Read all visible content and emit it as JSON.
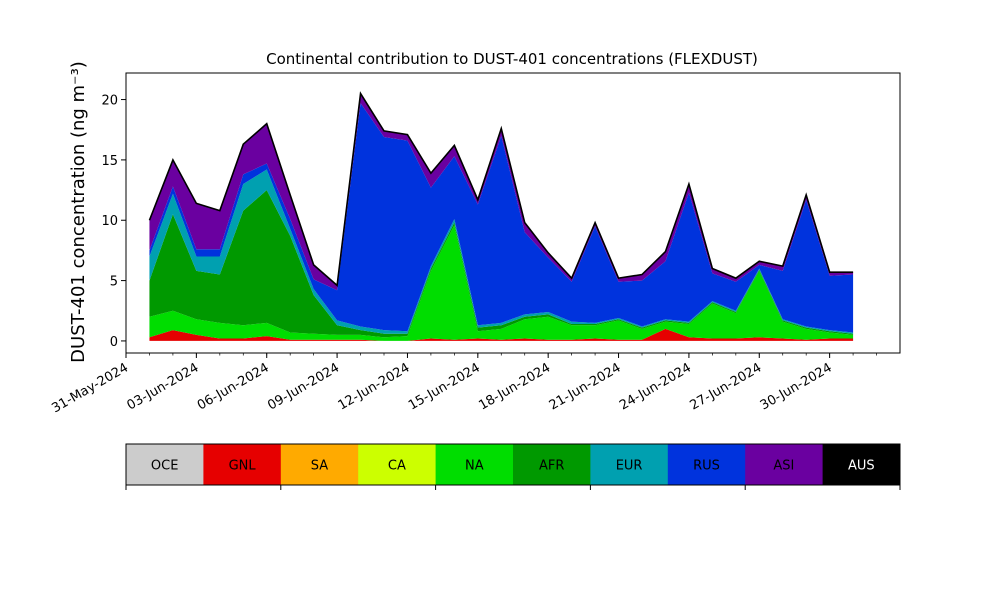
{
  "chart_data": {
    "type": "area",
    "title": "Continental contribution to DUST-401 concentrations (FLEXDUST)",
    "ylabel": "DUST-401 concentration (ng m⁻³)",
    "xlabel": "",
    "x_start": "2024-06-01",
    "x_end": "2024-07-01",
    "xlim": [
      "2024-05-31",
      "2024-07-03"
    ],
    "ylim": [
      -1,
      22.2
    ],
    "x_ticks": [
      "31-May-2024",
      "03-Jun-2024",
      "06-Jun-2024",
      "09-Jun-2024",
      "12-Jun-2024",
      "15-Jun-2024",
      "18-Jun-2024",
      "21-Jun-2024",
      "24-Jun-2024",
      "27-Jun-2024",
      "30-Jun-2024"
    ],
    "y_ticks": [
      0,
      5,
      10,
      15,
      20
    ],
    "grid": false,
    "total_line_color": "#000000",
    "x_dates": [
      "2024-06-01",
      "2024-06-02",
      "2024-06-03",
      "2024-06-04",
      "2024-06-05",
      "2024-06-06",
      "2024-06-07",
      "2024-06-08",
      "2024-06-09",
      "2024-06-10",
      "2024-06-11",
      "2024-06-12",
      "2024-06-13",
      "2024-06-14",
      "2024-06-15",
      "2024-06-16",
      "2024-06-17",
      "2024-06-18",
      "2024-06-19",
      "2024-06-20",
      "2024-06-21",
      "2024-06-22",
      "2024-06-23",
      "2024-06-24",
      "2024-06-25",
      "2024-06-26",
      "2024-06-27",
      "2024-06-28",
      "2024-06-29",
      "2024-06-30",
      "2024-07-01"
    ],
    "series": [
      {
        "name": "OCE",
        "color": "#cccccc",
        "values": [
          0,
          0,
          0,
          0,
          0,
          0,
          0,
          0,
          0,
          0,
          0,
          0,
          0,
          0,
          0,
          0,
          0,
          0,
          0,
          0,
          0,
          0,
          0,
          0,
          0,
          0,
          0,
          0,
          0,
          0,
          0
        ]
      },
      {
        "name": "GNL",
        "color": "#e60000",
        "values": [
          0.3,
          0.9,
          0.5,
          0.2,
          0.2,
          0.4,
          0.1,
          0.1,
          0.1,
          0.1,
          0,
          0,
          0.2,
          0.1,
          0.2,
          0.1,
          0.2,
          0.1,
          0.1,
          0.2,
          0.1,
          0.1,
          1.0,
          0.3,
          0.2,
          0.2,
          0.3,
          0.2,
          0.1,
          0.2,
          0.2
        ]
      },
      {
        "name": "SA",
        "color": "#ffaa00",
        "values": [
          0,
          0,
          0,
          0,
          0,
          0,
          0,
          0,
          0,
          0,
          0,
          0,
          0,
          0,
          0,
          0,
          0,
          0,
          0,
          0,
          0,
          0,
          0,
          0,
          0,
          0,
          0,
          0,
          0,
          0,
          0
        ]
      },
      {
        "name": "CA",
        "color": "#ccff00",
        "values": [
          0,
          0,
          0,
          0,
          0,
          0,
          0,
          0,
          0,
          0,
          0,
          0,
          0,
          0,
          0,
          0,
          0,
          0,
          0,
          0,
          0,
          0,
          0,
          0,
          0,
          0,
          0,
          0,
          0,
          0,
          0
        ]
      },
      {
        "name": "NA",
        "color": "#00dd00",
        "values": [
          1.7,
          1.6,
          1.3,
          1.3,
          1.1,
          1.1,
          0.6,
          0.5,
          0.4,
          0.4,
          0.3,
          0.4,
          5.6,
          9.5,
          0.6,
          0.9,
          1.6,
          1.9,
          1.2,
          1.1,
          1.6,
          0.9,
          0.6,
          1.1,
          2.9,
          2.1,
          5.5,
          1.4,
          0.9,
          0.5,
          0.3
        ]
      },
      {
        "name": "AFR",
        "color": "#009900",
        "values": [
          3.0,
          8.0,
          4.0,
          4.0,
          9.5,
          11.0,
          8.0,
          3.2,
          0.8,
          0.4,
          0.3,
          0.2,
          0.2,
          0.2,
          0.3,
          0.3,
          0.2,
          0.2,
          0.1,
          0.1,
          0.1,
          0.1,
          0.1,
          0.1,
          0.1,
          0.1,
          0.1,
          0.1,
          0.1,
          0.1,
          0.1
        ]
      },
      {
        "name": "EUR",
        "color": "#00a0b0",
        "values": [
          2.0,
          1.7,
          1.2,
          1.5,
          2.2,
          1.7,
          0.6,
          0.5,
          0.4,
          0.3,
          0.3,
          0.2,
          0.2,
          0.3,
          0.2,
          0.2,
          0.2,
          0.2,
          0.2,
          0.1,
          0.1,
          0.1,
          0.1,
          0.1,
          0.1,
          0.1,
          0.1,
          0.1,
          0.1,
          0.1,
          0.1
        ]
      },
      {
        "name": "RUS",
        "color": "#0033dd",
        "values": [
          0.5,
          0.6,
          0.6,
          0.6,
          0.8,
          0.5,
          0.8,
          0.8,
          2.5,
          18.5,
          16.0,
          15.8,
          6.5,
          5.2,
          10.0,
          15.5,
          6.8,
          4.5,
          3.3,
          8.0,
          3.0,
          3.8,
          4.8,
          10.7,
          2.3,
          2.4,
          0.3,
          4.0,
          10.5,
          4.5,
          4.8
        ]
      },
      {
        "name": "ASI",
        "color": "#6a00a0",
        "values": [
          2.5,
          2.2,
          3.8,
          3.2,
          2.5,
          3.3,
          2.0,
          1.2,
          0.4,
          0.8,
          0.5,
          0.5,
          1.2,
          0.9,
          0.4,
          0.6,
          0.8,
          0.4,
          0.3,
          0.3,
          0.3,
          0.5,
          0.8,
          0.7,
          0.4,
          0.3,
          0.3,
          0.4,
          0.4,
          0.3,
          0.2
        ]
      },
      {
        "name": "AUS",
        "color": "#000000",
        "values": [
          0,
          0,
          0,
          0,
          0,
          0,
          0,
          0,
          0,
          0,
          0,
          0,
          0,
          0,
          0,
          0,
          0,
          0,
          0,
          0,
          0,
          0,
          0,
          0,
          0,
          0,
          0,
          0,
          0,
          0,
          0
        ]
      }
    ]
  }
}
